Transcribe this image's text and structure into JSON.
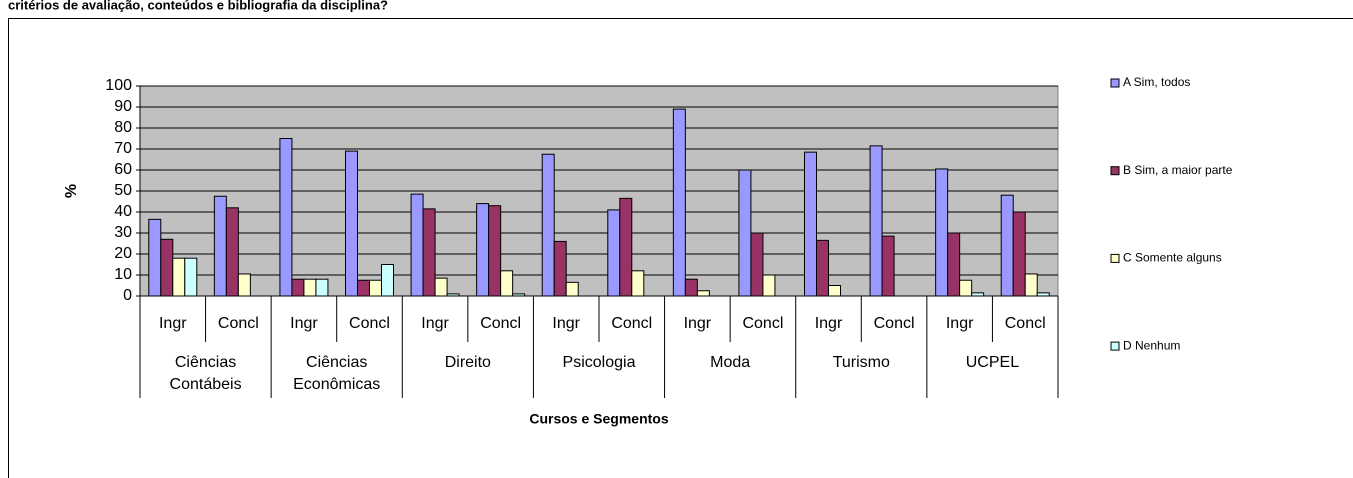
{
  "chart_data": {
    "type": "bar",
    "title": "critérios de avaliação, conteúdos e bibliografia da disciplina?",
    "categories": [
      "Ingr",
      "Concl",
      "Ingr",
      "Concl",
      "Ingr",
      "Concl",
      "Ingr",
      "Concl",
      "Ingr",
      "Concl",
      "Ingr",
      "Concl",
      "Ingr",
      "Concl"
    ],
    "groups": [
      "Ciências Contábeis",
      "Ciências Econômicas",
      "Direito",
      "Psicologia",
      "Moda",
      "Turismo",
      "UCPEL"
    ],
    "series": [
      {
        "name": "A Sim, todos",
        "color": "#9999ff",
        "values": [
          36.5,
          47.5,
          75,
          69,
          48.5,
          44,
          67.5,
          41,
          89,
          60,
          68.5,
          71.5,
          60.5,
          48
        ]
      },
      {
        "name": "B Sim, a maior parte",
        "color": "#993366",
        "values": [
          27,
          42,
          8,
          7.5,
          41.5,
          43,
          26,
          46.5,
          8,
          30,
          26.5,
          28.5,
          30,
          40
        ]
      },
      {
        "name": "C Somente alguns",
        "color": "#ffffcc",
        "values": [
          18,
          10.5,
          8,
          7.5,
          8.5,
          12,
          6.5,
          12,
          2.5,
          10,
          5,
          0,
          7.5,
          10.5
        ]
      },
      {
        "name": "D Nenhum",
        "color": "#ccffff",
        "values": [
          18,
          0,
          8,
          15,
          1,
          1,
          0,
          0,
          0,
          0,
          0,
          0,
          1.5,
          1.5
        ]
      }
    ],
    "ylabel": "%",
    "xlabel": "Cursos e Segmentos",
    "ylim": [
      0,
      100
    ],
    "yticks": [
      0,
      10,
      20,
      30,
      40,
      50,
      60,
      70,
      80,
      90,
      100
    ],
    "grid": true
  }
}
